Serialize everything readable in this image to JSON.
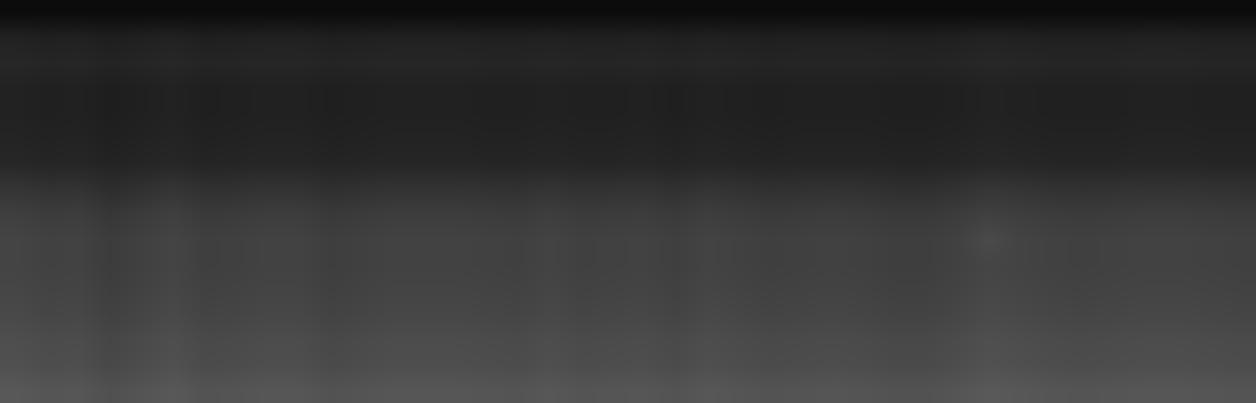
{
  "chart_data": {
    "type": "heatmap",
    "color": "gray",
    "tick_labels": false,
    "zlim": [
      0,
      255
    ],
    "cells": [
      [
        88,
        85,
        86,
        80,
        84,
        88,
        83,
        84,
        86,
        86,
        82,
        84,
        86,
        86,
        86,
        85,
        84,
        87,
        84,
        85,
        86,
        83,
        87,
        85,
        83,
        84,
        85,
        84,
        82,
        82,
        85,
        89,
        87,
        85,
        84,
        85,
        86,
        86,
        85,
        84
      ],
      [
        80,
        77,
        78,
        72,
        76,
        80,
        75,
        76,
        78,
        78,
        74,
        76,
        78,
        78,
        78,
        77,
        76,
        79,
        76,
        77,
        78,
        75,
        79,
        77,
        75,
        76,
        77,
        76,
        74,
        74,
        77,
        81,
        79,
        77,
        76,
        77,
        78,
        78,
        77,
        76
      ],
      [
        78,
        75,
        76,
        70,
        74,
        78,
        73,
        74,
        76,
        76,
        72,
        74,
        76,
        76,
        76,
        75,
        74,
        77,
        74,
        75,
        76,
        73,
        77,
        75,
        73,
        74,
        75,
        74,
        72,
        72,
        75,
        79,
        77,
        75,
        74,
        75,
        76,
        76,
        75,
        74
      ],
      [
        73,
        70,
        71,
        65,
        69,
        73,
        68,
        69,
        71,
        71,
        67,
        69,
        71,
        71,
        71,
        70,
        69,
        72,
        69,
        70,
        71,
        68,
        72,
        70,
        68,
        69,
        70,
        69,
        67,
        67,
        70,
        74,
        72,
        70,
        69,
        70,
        71,
        71,
        70,
        69
      ],
      [
        70,
        67,
        68,
        62,
        66,
        70,
        65,
        66,
        68,
        68,
        64,
        66,
        68,
        68,
        68,
        67,
        66,
        69,
        66,
        67,
        68,
        65,
        69,
        67,
        65,
        66,
        67,
        66,
        64,
        64,
        67,
        71,
        69,
        67,
        66,
        67,
        68,
        68,
        67,
        66
      ],
      [
        68,
        65,
        66,
        60,
        64,
        68,
        63,
        64,
        66,
        66,
        62,
        64,
        66,
        66,
        66,
        65,
        64,
        67,
        64,
        65,
        66,
        63,
        67,
        65,
        63,
        64,
        65,
        64,
        62,
        62,
        65,
        69,
        67,
        65,
        64,
        65,
        66,
        66,
        65,
        64
      ],
      [
        68,
        65,
        66,
        60,
        64,
        68,
        63,
        64,
        66,
        66,
        62,
        64,
        66,
        66,
        66,
        65,
        64,
        67,
        64,
        65,
        66,
        63,
        67,
        65,
        63,
        64,
        65,
        64,
        62,
        62,
        65,
        74,
        67,
        65,
        64,
        65,
        66,
        66,
        65,
        64
      ],
      [
        63,
        60,
        61,
        55,
        59,
        63,
        58,
        59,
        61,
        61,
        57,
        59,
        61,
        61,
        61,
        60,
        59,
        62,
        59,
        60,
        61,
        58,
        62,
        60,
        58,
        59,
        60,
        59,
        57,
        57,
        60,
        64,
        62,
        60,
        59,
        60,
        61,
        61,
        60,
        59
      ],
      [
        53,
        50,
        51,
        45,
        49,
        53,
        48,
        49,
        51,
        51,
        47,
        49,
        51,
        51,
        51,
        50,
        49,
        52,
        49,
        50,
        51,
        48,
        52,
        50,
        48,
        49,
        50,
        49,
        47,
        47,
        50,
        54,
        52,
        50,
        49,
        50,
        51,
        51,
        50,
        49
      ],
      [
        39,
        37,
        38,
        35,
        37,
        39,
        36,
        37,
        38,
        38,
        36,
        37,
        38,
        38,
        38,
        37,
        37,
        38,
        37,
        37,
        38,
        36,
        38,
        37,
        36,
        37,
        37,
        37,
        36,
        36,
        37,
        39,
        38,
        37,
        37,
        37,
        38,
        38,
        37,
        37
      ],
      [
        36,
        34,
        35,
        32,
        34,
        36,
        33,
        34,
        35,
        35,
        33,
        34,
        35,
        35,
        35,
        34,
        34,
        35,
        34,
        34,
        35,
        33,
        35,
        34,
        33,
        34,
        34,
        34,
        33,
        33,
        34,
        36,
        35,
        34,
        34,
        34,
        35,
        35,
        34,
        34
      ],
      [
        34,
        32,
        33,
        30,
        32,
        34,
        31,
        32,
        33,
        33,
        31,
        32,
        33,
        33,
        33,
        32,
        32,
        33,
        32,
        32,
        33,
        31,
        33,
        32,
        31,
        32,
        32,
        32,
        31,
        31,
        32,
        34,
        33,
        32,
        32,
        32,
        33,
        33,
        32,
        32
      ],
      [
        34,
        32,
        33,
        30,
        32,
        34,
        31,
        32,
        33,
        33,
        31,
        32,
        33,
        33,
        33,
        32,
        32,
        33,
        32,
        32,
        33,
        31,
        33,
        32,
        31,
        32,
        32,
        32,
        31,
        31,
        32,
        34,
        33,
        32,
        32,
        32,
        33,
        33,
        32,
        32
      ],
      [
        39,
        37,
        38,
        35,
        37,
        39,
        36,
        37,
        38,
        38,
        36,
        37,
        38,
        38,
        38,
        37,
        37,
        38,
        37,
        37,
        38,
        36,
        38,
        37,
        36,
        37,
        37,
        37,
        36,
        36,
        37,
        39,
        38,
        37,
        37,
        37,
        38,
        38,
        37,
        37
      ],
      [
        34,
        32,
        33,
        30,
        32,
        34,
        31,
        32,
        33,
        33,
        31,
        32,
        33,
        33,
        33,
        32,
        32,
        33,
        32,
        32,
        33,
        31,
        33,
        32,
        31,
        32,
        32,
        32,
        31,
        31,
        32,
        34,
        33,
        32,
        32,
        32,
        33,
        33,
        32,
        32
      ],
      [
        12,
        12,
        12,
        12,
        12,
        12,
        12,
        12,
        12,
        12,
        12,
        12,
        12,
        12,
        12,
        12,
        12,
        12,
        12,
        12,
        12,
        12,
        12,
        12,
        12,
        12,
        12,
        12,
        12,
        12,
        12,
        12,
        12,
        12,
        12,
        12,
        12,
        12,
        12,
        12
      ]
    ]
  }
}
